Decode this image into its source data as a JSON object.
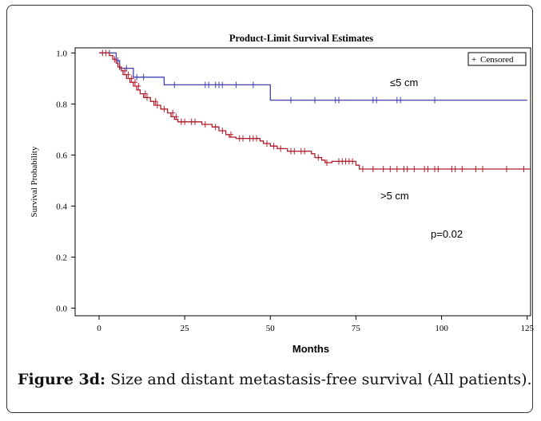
{
  "chart_data": {
    "type": "line",
    "title": "Product-Limit Survival Estimates",
    "xlabel": "Months",
    "ylabel": "Survival Probability",
    "xlim": [
      -7,
      126
    ],
    "ylim": [
      -0.03,
      1.02
    ],
    "xticks": [
      0,
      25,
      50,
      75,
      100,
      125
    ],
    "yticks": [
      0.0,
      0.2,
      0.4,
      0.6,
      0.8,
      1.0
    ],
    "xtick_labels": [
      "0",
      "25",
      "50",
      "75",
      "100",
      "125"
    ],
    "ytick_labels": [
      "0.0",
      "0.2",
      "0.4",
      "0.6",
      "0.8",
      "1.0"
    ],
    "legend": {
      "label": "Censored",
      "symbol": "+",
      "position": "top-right"
    },
    "series": [
      {
        "label": "≤5 cm",
        "color": "#4040b0",
        "steps": [
          [
            0,
            1.0
          ],
          [
            5,
            1.0
          ],
          [
            5,
            0.97
          ],
          [
            6,
            0.97
          ],
          [
            6,
            0.94
          ],
          [
            10,
            0.94
          ],
          [
            10,
            0.905
          ],
          [
            19,
            0.905
          ],
          [
            19,
            0.875
          ],
          [
            50,
            0.875
          ],
          [
            50,
            0.815
          ],
          [
            125,
            0.815
          ]
        ],
        "censored": [
          [
            3,
            1.0
          ],
          [
            5.5,
            0.97
          ],
          [
            8,
            0.94
          ],
          [
            11,
            0.905
          ],
          [
            13,
            0.905
          ],
          [
            22,
            0.875
          ],
          [
            31,
            0.875
          ],
          [
            32,
            0.875
          ],
          [
            34,
            0.875
          ],
          [
            35,
            0.875
          ],
          [
            36,
            0.875
          ],
          [
            40,
            0.875
          ],
          [
            45,
            0.875
          ],
          [
            56,
            0.815
          ],
          [
            63,
            0.815
          ],
          [
            69,
            0.815
          ],
          [
            70,
            0.815
          ],
          [
            80,
            0.815
          ],
          [
            81,
            0.815
          ],
          [
            87,
            0.815
          ],
          [
            88,
            0.815
          ],
          [
            98,
            0.815
          ]
        ]
      },
      {
        "label": ">5 cm",
        "color": "#b01c2a",
        "steps": [
          [
            0,
            1.0
          ],
          [
            3,
            1.0
          ],
          [
            3,
            0.99
          ],
          [
            4,
            0.99
          ],
          [
            4,
            0.975
          ],
          [
            5,
            0.975
          ],
          [
            5,
            0.96
          ],
          [
            5.5,
            0.96
          ],
          [
            5.5,
            0.945
          ],
          [
            6.5,
            0.945
          ],
          [
            6.5,
            0.93
          ],
          [
            7,
            0.93
          ],
          [
            7,
            0.915
          ],
          [
            8,
            0.915
          ],
          [
            8,
            0.9
          ],
          [
            9,
            0.9
          ],
          [
            9,
            0.885
          ],
          [
            10,
            0.885
          ],
          [
            10,
            0.87
          ],
          [
            11,
            0.87
          ],
          [
            11,
            0.855
          ],
          [
            12,
            0.855
          ],
          [
            12,
            0.84
          ],
          [
            13,
            0.84
          ],
          [
            13,
            0.825
          ],
          [
            15,
            0.825
          ],
          [
            15,
            0.81
          ],
          [
            16,
            0.81
          ],
          [
            16,
            0.795
          ],
          [
            18,
            0.795
          ],
          [
            18,
            0.78
          ],
          [
            20,
            0.78
          ],
          [
            20,
            0.765
          ],
          [
            21,
            0.765
          ],
          [
            21,
            0.75
          ],
          [
            22,
            0.75
          ],
          [
            22,
            0.74
          ],
          [
            23,
            0.74
          ],
          [
            23,
            0.73
          ],
          [
            30,
            0.73
          ],
          [
            30,
            0.72
          ],
          [
            33,
            0.72
          ],
          [
            33,
            0.71
          ],
          [
            35,
            0.71
          ],
          [
            35,
            0.695
          ],
          [
            37,
            0.695
          ],
          [
            37,
            0.68
          ],
          [
            38,
            0.68
          ],
          [
            38,
            0.67
          ],
          [
            40,
            0.67
          ],
          [
            40,
            0.665
          ],
          [
            47,
            0.665
          ],
          [
            47,
            0.655
          ],
          [
            48,
            0.655
          ],
          [
            48,
            0.645
          ],
          [
            50,
            0.645
          ],
          [
            50,
            0.635
          ],
          [
            52,
            0.635
          ],
          [
            52,
            0.625
          ],
          [
            55,
            0.625
          ],
          [
            55,
            0.615
          ],
          [
            62,
            0.615
          ],
          [
            62,
            0.605
          ],
          [
            63,
            0.605
          ],
          [
            63,
            0.59
          ],
          [
            65,
            0.59
          ],
          [
            65,
            0.58
          ],
          [
            66,
            0.58
          ],
          [
            66,
            0.57
          ],
          [
            68,
            0.57
          ],
          [
            68,
            0.575
          ],
          [
            75,
            0.575
          ],
          [
            75,
            0.56
          ],
          [
            76,
            0.56
          ],
          [
            76,
            0.545
          ],
          [
            126,
            0.545
          ]
        ],
        "censored": [
          [
            1,
            1.0
          ],
          [
            2,
            1.0
          ],
          [
            4.5,
            0.975
          ],
          [
            6,
            0.945
          ],
          [
            7.5,
            0.93
          ],
          [
            8.5,
            0.915
          ],
          [
            9.5,
            0.9
          ],
          [
            10.5,
            0.885
          ],
          [
            11.5,
            0.87
          ],
          [
            13.5,
            0.84
          ],
          [
            14,
            0.825
          ],
          [
            16.5,
            0.81
          ],
          [
            17,
            0.795
          ],
          [
            19,
            0.78
          ],
          [
            21.5,
            0.765
          ],
          [
            22.5,
            0.75
          ],
          [
            24,
            0.73
          ],
          [
            25,
            0.73
          ],
          [
            27,
            0.73
          ],
          [
            28,
            0.73
          ],
          [
            31,
            0.72
          ],
          [
            34,
            0.71
          ],
          [
            36,
            0.695
          ],
          [
            38.5,
            0.68
          ],
          [
            41,
            0.665
          ],
          [
            42,
            0.665
          ],
          [
            44,
            0.665
          ],
          [
            45,
            0.665
          ],
          [
            46,
            0.665
          ],
          [
            49,
            0.645
          ],
          [
            51,
            0.635
          ],
          [
            53,
            0.625
          ],
          [
            56,
            0.615
          ],
          [
            57,
            0.615
          ],
          [
            59,
            0.615
          ],
          [
            60,
            0.615
          ],
          [
            64,
            0.59
          ],
          [
            66.5,
            0.57
          ],
          [
            70,
            0.575
          ],
          [
            71,
            0.575
          ],
          [
            72,
            0.575
          ],
          [
            73,
            0.575
          ],
          [
            74,
            0.575
          ],
          [
            77,
            0.545
          ],
          [
            80,
            0.545
          ],
          [
            83,
            0.545
          ],
          [
            85,
            0.545
          ],
          [
            87,
            0.545
          ],
          [
            89,
            0.545
          ],
          [
            90,
            0.545
          ],
          [
            92,
            0.545
          ],
          [
            95,
            0.545
          ],
          [
            96,
            0.545
          ],
          [
            98,
            0.545
          ],
          [
            99,
            0.545
          ],
          [
            103,
            0.545
          ],
          [
            104,
            0.545
          ],
          [
            106,
            0.545
          ],
          [
            110,
            0.545
          ],
          [
            112,
            0.545
          ],
          [
            119,
            0.545
          ],
          [
            124,
            0.545
          ]
        ]
      }
    ],
    "annotations": [
      "≤5 cm",
      ">5 cm",
      "p=0.02"
    ]
  },
  "caption": {
    "lead": "Figure 3d:",
    "text": " Size and distant metastasis-free survival (All patients)."
  }
}
